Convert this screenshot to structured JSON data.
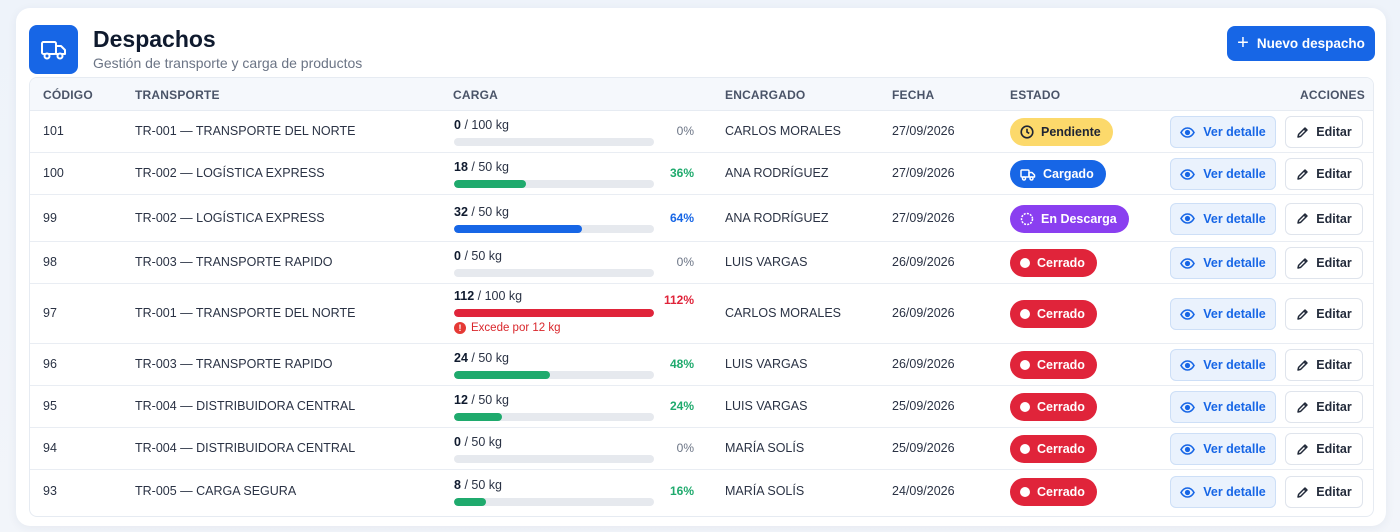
{
  "header": {
    "title": "Despachos",
    "subtitle": "Gestión de transporte y carga de productos",
    "new_button_label": "Nuevo despacho"
  },
  "columns": {
    "code": "CÓDIGO",
    "transport": "TRANSPORTE",
    "load": "CARGA",
    "manager": "ENCARGADO",
    "date": "FECHA",
    "status": "ESTADO",
    "actions": "ACCIONES"
  },
  "actions": {
    "view_label": "Ver detalle",
    "edit_label": "Editar"
  },
  "status_styles": {
    "Pendiente": {
      "bg": "#fcd96b",
      "fg": "#1e2433",
      "icon": "clock-icon"
    },
    "Cargado": {
      "bg": "#1766e6",
      "fg": "#ffffff",
      "icon": "truck-icon"
    },
    "En Descarga": {
      "bg": "#8a3ff0",
      "fg": "#ffffff",
      "icon": "spinner-icon"
    },
    "Cerrado": {
      "bg": "#e0243a",
      "fg": "#ffffff",
      "icon": "dot-icon"
    }
  },
  "colors": {
    "green": "#1faa6d",
    "blue": "#1766e6",
    "red": "#e0243a",
    "gray": "#6b7485"
  },
  "rows": [
    {
      "code": "101",
      "transport": "TR-001 — TRANSPORTE DEL NORTE",
      "load": "0",
      "capacity": "/ 100 kg",
      "fill": 0,
      "percent": "0%",
      "manager": "CARLOS MORALES",
      "date": "27/09/2026",
      "status": "Pendiente",
      "warning": ""
    },
    {
      "code": "100",
      "transport": "TR-002 — LOGÍSTICA EXPRESS",
      "load": "18",
      "capacity": "/ 50 kg",
      "fill": 36,
      "percent": "36%",
      "manager": "ANA RODRÍGUEZ",
      "date": "27/09/2026",
      "status": "Cargado",
      "warning": ""
    },
    {
      "code": "99",
      "transport": "TR-002 — LOGÍSTICA EXPRESS",
      "load": "32",
      "capacity": "/ 50 kg",
      "fill": 64,
      "percent": "64%",
      "manager": "ANA RODRÍGUEZ",
      "date": "27/09/2026",
      "status": "En Descarga",
      "warning": ""
    },
    {
      "code": "98",
      "transport": "TR-003 — TRANSPORTE RAPIDO",
      "load": "0",
      "capacity": "/ 50 kg",
      "fill": 0,
      "percent": "0%",
      "manager": "LUIS VARGAS",
      "date": "26/09/2026",
      "status": "Cerrado",
      "warning": ""
    },
    {
      "code": "97",
      "transport": "TR-001 — TRANSPORTE DEL NORTE",
      "load": "112",
      "capacity": "/ 100 kg",
      "fill": 112,
      "percent": "112%",
      "manager": "CARLOS MORALES",
      "date": "26/09/2026",
      "status": "Cerrado",
      "warning": "Excede por 12 kg"
    },
    {
      "code": "96",
      "transport": "TR-003 — TRANSPORTE RAPIDO",
      "load": "24",
      "capacity": "/ 50 kg",
      "fill": 48,
      "percent": "48%",
      "manager": "LUIS VARGAS",
      "date": "26/09/2026",
      "status": "Cerrado",
      "warning": ""
    },
    {
      "code": "95",
      "transport": "TR-004 — DISTRIBUIDORA CENTRAL",
      "load": "12",
      "capacity": "/ 50 kg",
      "fill": 24,
      "percent": "24%",
      "manager": "LUIS VARGAS",
      "date": "25/09/2026",
      "status": "Cerrado",
      "warning": ""
    },
    {
      "code": "94",
      "transport": "TR-004 — DISTRIBUIDORA CENTRAL",
      "load": "0",
      "capacity": "/ 50 kg",
      "fill": 0,
      "percent": "0%",
      "manager": "MARÍA SOLÍS",
      "date": "25/09/2026",
      "status": "Cerrado",
      "warning": ""
    },
    {
      "code": "93",
      "transport": "TR-005 — CARGA SEGURA",
      "load": "8",
      "capacity": "/ 50 kg",
      "fill": 16,
      "percent": "16%",
      "manager": "MARÍA SOLÍS",
      "date": "24/09/2026",
      "status": "Cerrado",
      "warning": ""
    }
  ]
}
